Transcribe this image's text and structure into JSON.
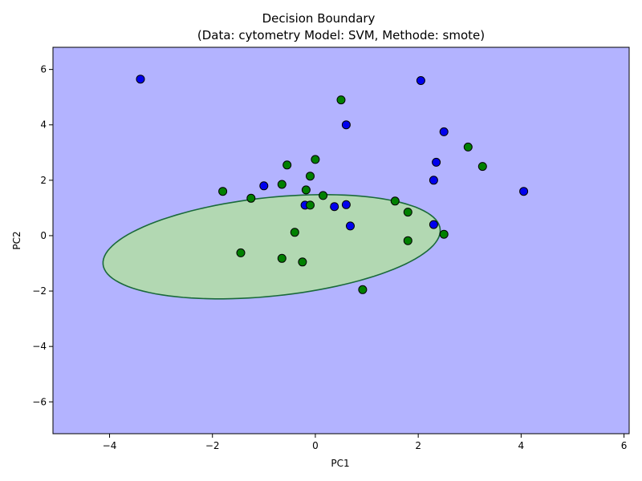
{
  "chart_data": {
    "type": "scatter",
    "title": "Decision Boundary",
    "subtitle": "(Data: cytometry Model: SVM, Methode: smote)",
    "xlabel": "PC1",
    "ylabel": "PC2",
    "xlim": [
      -5.1,
      6.1
    ],
    "ylim": [
      -7.15,
      6.8
    ],
    "xticks": [
      -4,
      -2,
      0,
      2,
      4,
      6
    ],
    "yticks": [
      -6,
      -4,
      -2,
      0,
      2,
      4,
      6
    ],
    "grid": false,
    "legend": "none",
    "colors": {
      "background_region": "#b3b3ff",
      "boundary_region": "#b2d8b2",
      "boundary_edge": "#1a6a3a",
      "class_blue": "#0000ee",
      "class_green": "#008000",
      "marker_edge": "#000000"
    },
    "decision_region": {
      "center": [
        -0.85,
        -0.4
      ],
      "semi_axes": [
        3.35,
        1.75
      ],
      "rotation_deg": 14
    },
    "series": [
      {
        "color": "#0000ee",
        "points": [
          [
            -3.4,
            5.65
          ],
          [
            2.05,
            5.6
          ],
          [
            0.6,
            4.0
          ],
          [
            2.5,
            3.75
          ],
          [
            2.35,
            2.65
          ],
          [
            2.3,
            2.0
          ],
          [
            4.05,
            1.6
          ],
          [
            -1.0,
            1.8
          ],
          [
            -0.2,
            1.1
          ],
          [
            0.6,
            1.12
          ],
          [
            0.37,
            1.05
          ],
          [
            0.68,
            0.35
          ],
          [
            2.3,
            0.4
          ]
        ]
      },
      {
        "color": "#008000",
        "points": [
          [
            0.5,
            4.9
          ],
          [
            2.97,
            3.2
          ],
          [
            3.25,
            2.5
          ],
          [
            -0.55,
            2.55
          ],
          [
            0.0,
            2.75
          ],
          [
            -0.1,
            2.15
          ],
          [
            -1.8,
            1.6
          ],
          [
            -1.25,
            1.35
          ],
          [
            -0.65,
            1.85
          ],
          [
            -0.18,
            1.65
          ],
          [
            0.15,
            1.45
          ],
          [
            -0.1,
            1.1
          ],
          [
            1.55,
            1.25
          ],
          [
            1.8,
            0.85
          ],
          [
            -0.4,
            0.12
          ],
          [
            2.5,
            0.05
          ],
          [
            1.8,
            -0.18
          ],
          [
            -1.45,
            -0.62
          ],
          [
            -0.65,
            -0.82
          ],
          [
            -0.25,
            -0.95
          ],
          [
            0.92,
            -1.95
          ]
        ]
      }
    ]
  }
}
